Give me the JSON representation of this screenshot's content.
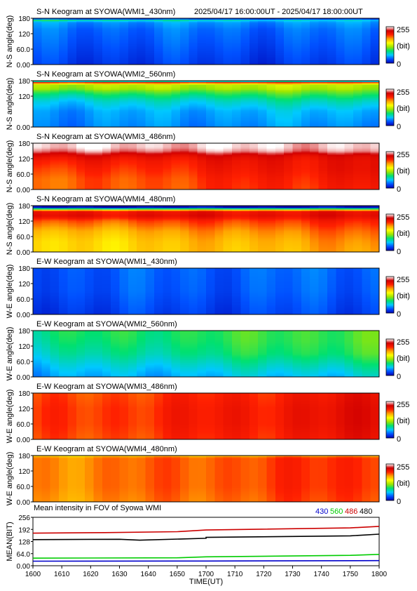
{
  "header": {
    "time_range": "2025/04/17 16:00:00UT - 2025/04/17 18:00:00UT"
  },
  "colorbar": {
    "max_label": "255",
    "unit_label": "(bit)",
    "min_label": "0",
    "stops": [
      "#0000b4",
      "#0050ff",
      "#00c8ff",
      "#00e070",
      "#9be600",
      "#ffff00",
      "#ffa500",
      "#ff2000",
      "#d00000",
      "#ffffff"
    ]
  },
  "chart_data": [
    {
      "type": "heatmap",
      "title": "S-N Keogram at SYOWA(WMI1_430nm)",
      "ylabel": "N-S angle(deg)",
      "ylim": [
        0,
        180
      ],
      "yticks": [
        "180",
        "120",
        "60.0",
        "0.00"
      ],
      "x_range_ut": [
        1600,
        1800
      ],
      "intensity_range": [
        0,
        255
      ],
      "profile": {
        "angles_deg": [
          0,
          45,
          90,
          135,
          165,
          172,
          180
        ],
        "start_values": [
          20,
          25,
          30,
          35,
          45,
          90,
          5
        ],
        "end_values": [
          20,
          25,
          30,
          35,
          45,
          60,
          5
        ]
      }
    },
    {
      "type": "heatmap",
      "title": "S-N Keogram at SYOWA(WMI2_560nm)",
      "ylabel": "N-S angle(deg)",
      "ylim": [
        0,
        180
      ],
      "yticks": [
        "180",
        "120",
        "0.00"
      ],
      "x_range_ut": [
        1600,
        1800
      ],
      "intensity_range": [
        0,
        255
      ],
      "profile": {
        "angles_deg": [
          0,
          60,
          100,
          130,
          150,
          165,
          172,
          180
        ],
        "start_values": [
          40,
          45,
          60,
          85,
          115,
          120,
          215,
          5
        ],
        "end_values": [
          45,
          55,
          75,
          100,
          120,
          125,
          215,
          5
        ]
      }
    },
    {
      "type": "heatmap",
      "title": "S-N Keogram at SYOWA(WMI3_486nm)",
      "ylabel": "N-S angle(deg)",
      "ylim": [
        0,
        180
      ],
      "yticks": [
        "180",
        "120",
        "60.0",
        "0.00"
      ],
      "x_range_ut": [
        1600,
        1800
      ],
      "intensity_range": [
        0,
        255
      ],
      "profile": {
        "angles_deg": [
          0,
          40,
          80,
          110,
          130,
          150,
          165,
          180
        ],
        "start_values": [
          180,
          180,
          190,
          200,
          215,
          240,
          250,
          250
        ],
        "end_values": [
          205,
          210,
          215,
          215,
          220,
          245,
          250,
          250
        ]
      }
    },
    {
      "type": "heatmap",
      "title": "S-N Keogram at SYOWA(WMI4_480nm)",
      "ylabel": "N-S angle(deg)",
      "ylim": [
        0,
        180
      ],
      "yticks": [
        "180",
        "120",
        "60.0",
        "0.00"
      ],
      "x_range_ut": [
        1600,
        1800
      ],
      "intensity_range": [
        0,
        255
      ],
      "profile": {
        "angles_deg": [
          0,
          40,
          80,
          120,
          140,
          160,
          172,
          180
        ],
        "start_values": [
          150,
          150,
          160,
          185,
          215,
          205,
          5,
          5
        ],
        "end_values": [
          170,
          175,
          185,
          200,
          215,
          210,
          5,
          5
        ]
      }
    },
    {
      "type": "heatmap",
      "title": "E-W Keogram at SYOWA(WMI1_430nm)",
      "ylabel": "W-E angle(deg)",
      "ylim": [
        0,
        180
      ],
      "yticks": [
        "180",
        "120",
        "60.0",
        "0.00"
      ],
      "x_range_ut": [
        1600,
        1800
      ],
      "intensity_range": [
        0,
        255
      ],
      "profile": {
        "angles_deg": [
          0,
          90,
          180
        ],
        "start_values": [
          20,
          28,
          30
        ],
        "end_values": [
          25,
          32,
          35
        ]
      }
    },
    {
      "type": "heatmap",
      "title": "E-W Keogram at SYOWA(WMI2_560nm)",
      "ylabel": "W-E angle(deg)",
      "ylim": [
        0,
        180
      ],
      "yticks": [
        "180",
        "120",
        "60.0",
        "0.00"
      ],
      "x_range_ut": [
        1600,
        1800
      ],
      "intensity_range": [
        0,
        255
      ],
      "profile": {
        "angles_deg": [
          0,
          40,
          90,
          140,
          180
        ],
        "start_values": [
          45,
          55,
          70,
          80,
          85
        ],
        "end_values": [
          60,
          75,
          95,
          100,
          100
        ]
      }
    },
    {
      "type": "heatmap",
      "title": "E-W Keogram at SYOWA(WMI3_486nm)",
      "ylabel": "W-E angle(deg)",
      "ylim": [
        0,
        180
      ],
      "yticks": [
        "180",
        "120",
        "60.0",
        "0.00"
      ],
      "x_range_ut": [
        1600,
        1800
      ],
      "intensity_range": [
        0,
        255
      ],
      "profile": {
        "angles_deg": [
          0,
          60,
          120,
          180
        ],
        "start_values": [
          185,
          190,
          190,
          185
        ],
        "end_values": [
          210,
          215,
          215,
          210
        ]
      }
    },
    {
      "type": "heatmap",
      "title": "E-W Keogram at SYOWA(WMI4_480nm)",
      "ylabel": "W-E angle(deg)",
      "ylim": [
        0,
        180
      ],
      "yticks": [
        "180",
        "120",
        "60.0",
        "0.00"
      ],
      "x_range_ut": [
        1600,
        1800
      ],
      "intensity_range": [
        0,
        255
      ],
      "profile": {
        "angles_deg": [
          0,
          60,
          120,
          170,
          180
        ],
        "start_values": [
          170,
          175,
          175,
          175,
          150
        ],
        "end_values": [
          195,
          200,
          200,
          200,
          170
        ]
      }
    },
    {
      "type": "line",
      "title": "Mean intensity in FOV of Syowa WMI",
      "xlabel": "TIME(UT)",
      "ylabel": "MEAN(BIT)",
      "xlim": [
        1600,
        1800
      ],
      "ylim": [
        0,
        256
      ],
      "x_ticks": [
        "1600",
        "1610",
        "1620",
        "1630",
        "1640",
        "1650",
        "1700",
        "1710",
        "1720",
        "1730",
        "1740",
        "1750",
        "1800"
      ],
      "y_ticks": [
        "256",
        "192",
        "128",
        "64.0",
        "0.00"
      ],
      "legend_position": "top-right",
      "series": [
        {
          "name": "430",
          "color": "#0000cc",
          "x": [
            1600,
            1700,
            1800
          ],
          "y": [
            24,
            25,
            27
          ]
        },
        {
          "name": "560",
          "color": "#00cc00",
          "x": [
            1600,
            1650,
            1700,
            1750,
            1800
          ],
          "y": [
            40,
            42,
            47,
            55,
            60
          ]
        },
        {
          "name": "486",
          "color": "#cc0000",
          "x": [
            1600,
            1625,
            1650,
            1700,
            1750,
            1800
          ],
          "y": [
            172,
            175,
            180,
            189,
            200,
            208
          ]
        },
        {
          "name": "480",
          "color": "#000000",
          "x": [
            1600,
            1630,
            1637,
            1660,
            1700,
            1750,
            1800
          ],
          "y": [
            138,
            140,
            135,
            145,
            150,
            158,
            167
          ]
        }
      ]
    }
  ]
}
